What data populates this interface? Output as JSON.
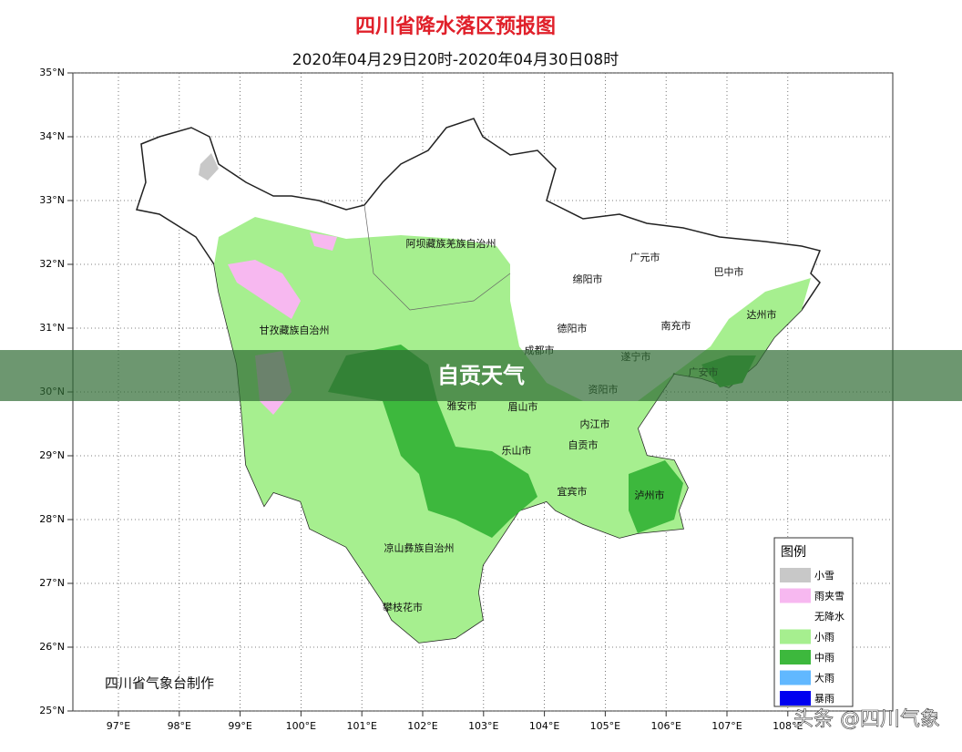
{
  "header": {
    "title": "四川省降水落区预报图",
    "subtitle": "2020年04月29日20时-2020年04月30日08时"
  },
  "map": {
    "lat_labels": [
      "35°N",
      "34°N",
      "33°N",
      "32°N",
      "31°N",
      "30°N",
      "29°N",
      "28°N",
      "27°N",
      "26°N",
      "25°N"
    ],
    "lon_labels": [
      "97°E",
      "98°E",
      "99°E",
      "100°E",
      "101°E",
      "102°E",
      "103°E",
      "104°E",
      "105°E",
      "106°E",
      "107°E",
      "108°E"
    ],
    "places": [
      "阿坝藏族羌族自治州",
      "广元市",
      "巴中市",
      "绵阳市",
      "达州市",
      "甘孜藏族自治州",
      "德阳市",
      "南充市",
      "成都市",
      "遂宁市",
      "广安市",
      "资阳市",
      "雅安市",
      "眉山市",
      "内江市",
      "自贡市",
      "乐山市",
      "宜宾市",
      "泸州市",
      "凉山彝族自治州",
      "攀枝花市"
    ],
    "credit": "四川省气象台制作"
  },
  "legend": {
    "title": "图例",
    "items": [
      {
        "label": "小雪",
        "color": "#c8c8c8"
      },
      {
        "label": "雨夹雪",
        "color": "#f7b8f0"
      },
      {
        "label": "无降水",
        "color": "#ffffff"
      },
      {
        "label": "小雨",
        "color": "#a6ef8f"
      },
      {
        "label": "中雨",
        "color": "#3db83d"
      },
      {
        "label": "大雨",
        "color": "#61b8ff"
      },
      {
        "label": "暴雨",
        "color": "#0000f0"
      }
    ]
  },
  "banner": {
    "text": "自贡天气"
  },
  "watermark": "头条 @四川气象"
}
